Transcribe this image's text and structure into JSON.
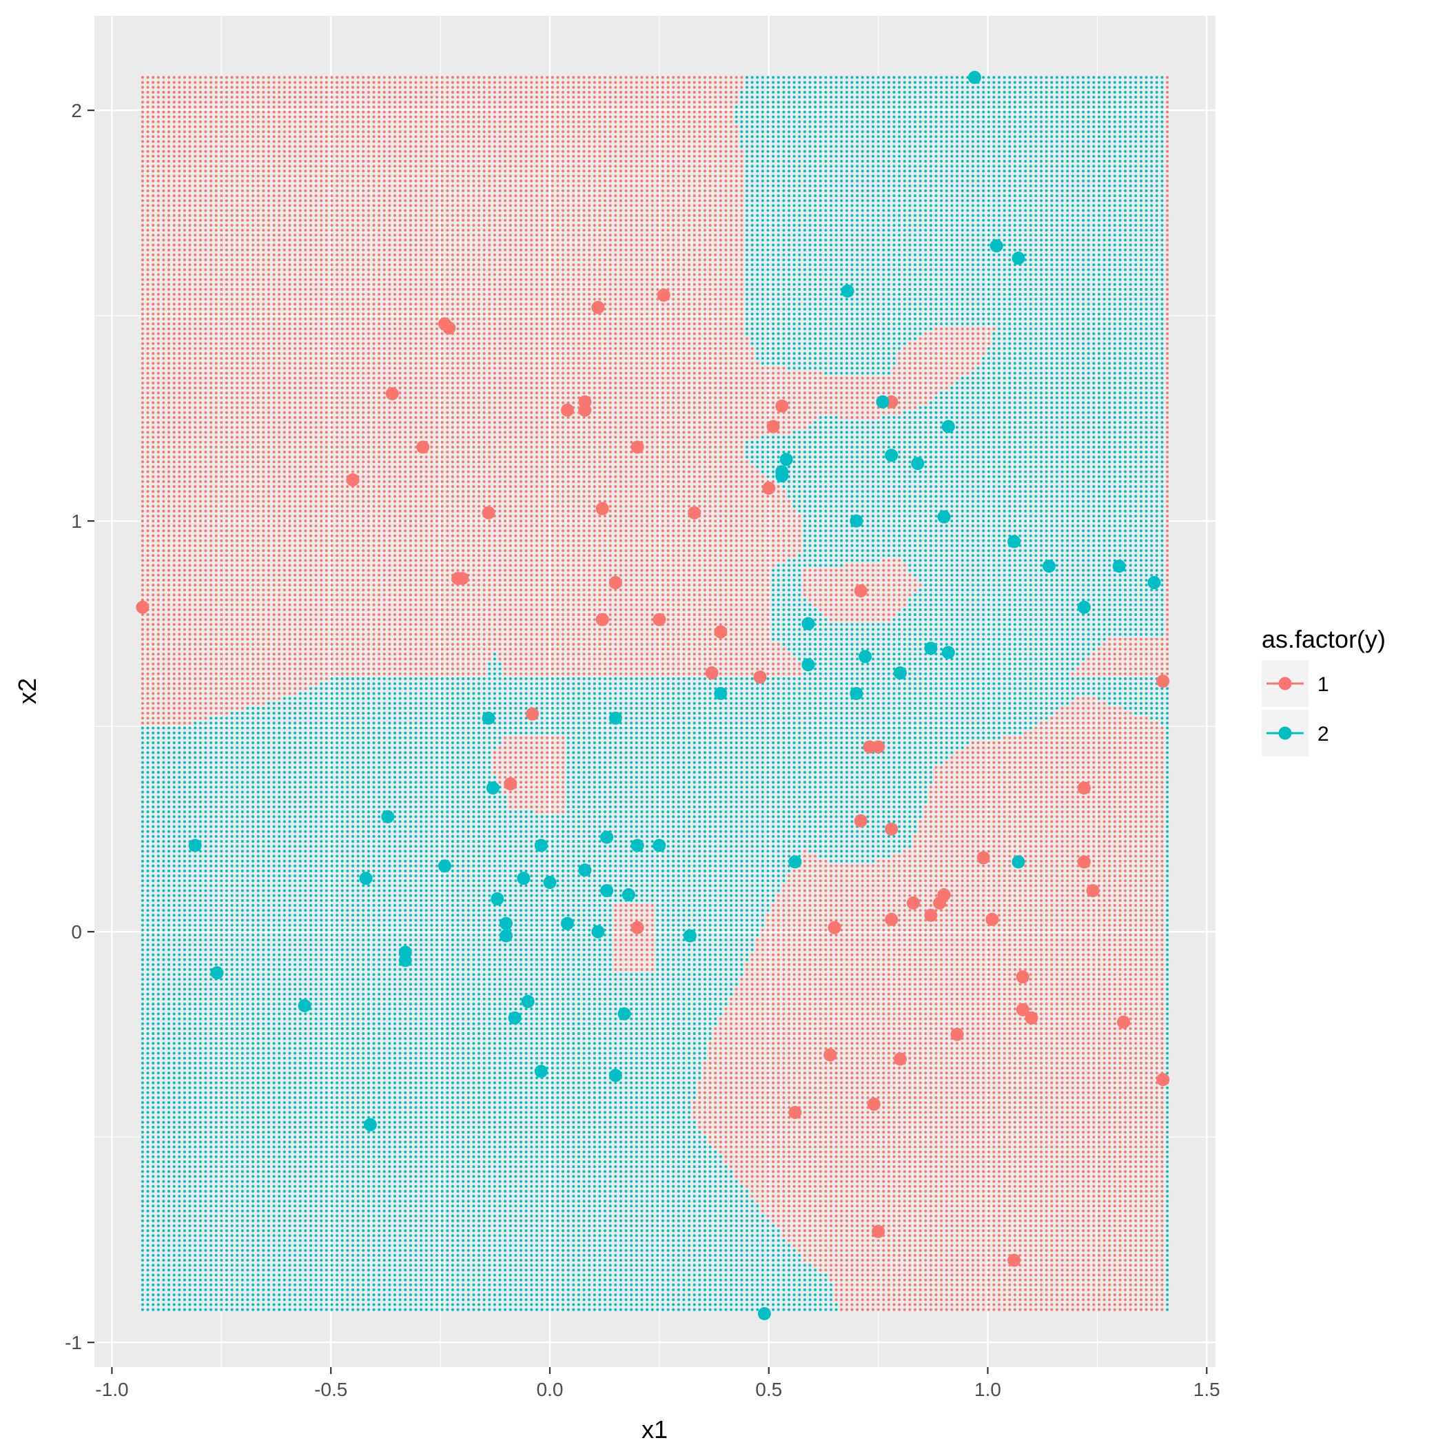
{
  "chart_data": {
    "type": "scatter",
    "xlabel": "x1",
    "ylabel": "x2",
    "xlim": [
      -1.04,
      1.52
    ],
    "ylim": [
      -1.06,
      2.23
    ],
    "x_ticks": [
      -1.0,
      -0.5,
      0.0,
      0.5,
      1.0,
      1.5
    ],
    "x_tick_labels": [
      "-1.0",
      "-0.5",
      "0.0",
      "0.5",
      "1.0",
      "1.5"
    ],
    "y_ticks": [
      -1,
      0,
      1,
      2
    ],
    "y_tick_labels": [
      "-1",
      "0",
      "1",
      "2"
    ],
    "grid": true,
    "legend": {
      "title": "as.factor(y)",
      "position": "right",
      "entries": [
        {
          "label": "1",
          "color": "#F8766D"
        },
        {
          "label": "2",
          "color": "#00BFC4"
        }
      ]
    },
    "decision_grid": {
      "x_range": [
        -0.93,
        1.41
      ],
      "y_range": [
        -0.92,
        2.09
      ],
      "step": 0.01,
      "description": "Background grid of small points colored by predicted class (1 = red, 2 = teal)"
    },
    "series": [
      {
        "name": "1",
        "color": "#F8766D",
        "points": [
          [
            -0.93,
            0.79
          ],
          [
            0.11,
            1.52
          ],
          [
            0.26,
            1.55
          ],
          [
            -0.24,
            1.48
          ],
          [
            -0.23,
            1.47
          ],
          [
            -0.36,
            1.31
          ],
          [
            0.04,
            1.27
          ],
          [
            0.08,
            1.27
          ],
          [
            0.08,
            1.29
          ],
          [
            -0.29,
            1.18
          ],
          [
            0.2,
            1.18
          ],
          [
            -0.45,
            1.1
          ],
          [
            0.12,
            1.03
          ],
          [
            0.33,
            1.02
          ],
          [
            -0.14,
            1.02
          ],
          [
            0.53,
            1.28
          ],
          [
            0.51,
            1.23
          ],
          [
            0.78,
            1.29
          ],
          [
            0.5,
            1.08
          ],
          [
            -0.21,
            0.86
          ],
          [
            -0.2,
            0.86
          ],
          [
            0.15,
            0.85
          ],
          [
            0.71,
            0.83
          ],
          [
            0.12,
            0.76
          ],
          [
            0.25,
            0.76
          ],
          [
            0.39,
            0.73
          ],
          [
            0.37,
            0.63
          ],
          [
            0.48,
            0.62
          ],
          [
            -0.04,
            0.53
          ],
          [
            1.4,
            0.61
          ],
          [
            0.73,
            0.45
          ],
          [
            0.75,
            0.45
          ],
          [
            -0.09,
            0.36
          ],
          [
            1.22,
            0.35
          ],
          [
            0.71,
            0.27
          ],
          [
            0.78,
            0.25
          ],
          [
            0.99,
            0.18
          ],
          [
            1.22,
            0.17
          ],
          [
            1.24,
            0.1
          ],
          [
            0.9,
            0.09
          ],
          [
            0.83,
            0.07
          ],
          [
            0.89,
            0.07
          ],
          [
            0.87,
            0.04
          ],
          [
            0.78,
            0.03
          ],
          [
            1.01,
            0.03
          ],
          [
            0.65,
            0.01
          ],
          [
            0.2,
            0.01
          ],
          [
            1.08,
            -0.11
          ],
          [
            1.08,
            -0.19
          ],
          [
            1.1,
            -0.21
          ],
          [
            1.31,
            -0.22
          ],
          [
            0.93,
            -0.25
          ],
          [
            0.64,
            -0.3
          ],
          [
            0.8,
            -0.31
          ],
          [
            1.4,
            -0.36
          ],
          [
            0.74,
            -0.42
          ],
          [
            0.56,
            -0.44
          ],
          [
            0.75,
            -0.73
          ],
          [
            1.06,
            -0.8
          ]
        ]
      },
      {
        "name": "2",
        "color": "#00BFC4",
        "points": [
          [
            0.97,
            2.08
          ],
          [
            1.02,
            1.67
          ],
          [
            1.07,
            1.64
          ],
          [
            0.68,
            1.56
          ],
          [
            0.76,
            1.29
          ],
          [
            0.91,
            1.23
          ],
          [
            0.78,
            1.16
          ],
          [
            0.84,
            1.14
          ],
          [
            0.54,
            1.15
          ],
          [
            0.53,
            1.12
          ],
          [
            0.53,
            1.11
          ],
          [
            0.7,
            1.0
          ],
          [
            0.9,
            1.01
          ],
          [
            1.06,
            0.95
          ],
          [
            1.14,
            0.89
          ],
          [
            1.3,
            0.89
          ],
          [
            1.38,
            0.85
          ],
          [
            1.22,
            0.79
          ],
          [
            0.59,
            0.75
          ],
          [
            0.87,
            0.69
          ],
          [
            0.91,
            0.68
          ],
          [
            0.72,
            0.67
          ],
          [
            0.59,
            0.65
          ],
          [
            0.8,
            0.63
          ],
          [
            0.7,
            0.58
          ],
          [
            0.39,
            0.58
          ],
          [
            -0.14,
            0.52
          ],
          [
            0.15,
            0.52
          ],
          [
            -0.13,
            0.35
          ],
          [
            -0.37,
            0.28
          ],
          [
            -0.81,
            0.21
          ],
          [
            0.13,
            0.23
          ],
          [
            -0.02,
            0.21
          ],
          [
            0.2,
            0.21
          ],
          [
            0.25,
            0.21
          ],
          [
            1.07,
            0.17
          ],
          [
            0.56,
            0.17
          ],
          [
            -0.24,
            0.16
          ],
          [
            0.08,
            0.15
          ],
          [
            -0.06,
            0.13
          ],
          [
            -0.42,
            0.13
          ],
          [
            0.0,
            0.12
          ],
          [
            0.13,
            0.1
          ],
          [
            0.18,
            0.09
          ],
          [
            -0.12,
            0.08
          ],
          [
            -0.1,
            0.02
          ],
          [
            0.04,
            0.02
          ],
          [
            0.11,
            0.0
          ],
          [
            -0.1,
            -0.01
          ],
          [
            0.32,
            -0.01
          ],
          [
            -0.33,
            -0.05
          ],
          [
            -0.33,
            -0.07
          ],
          [
            -0.76,
            -0.1
          ],
          [
            -0.56,
            -0.18
          ],
          [
            -0.05,
            -0.17
          ],
          [
            -0.08,
            -0.21
          ],
          [
            0.17,
            -0.2
          ],
          [
            -0.02,
            -0.34
          ],
          [
            0.15,
            -0.35
          ],
          [
            -0.41,
            -0.47
          ],
          [
            0.49,
            -0.93
          ]
        ]
      }
    ]
  }
}
